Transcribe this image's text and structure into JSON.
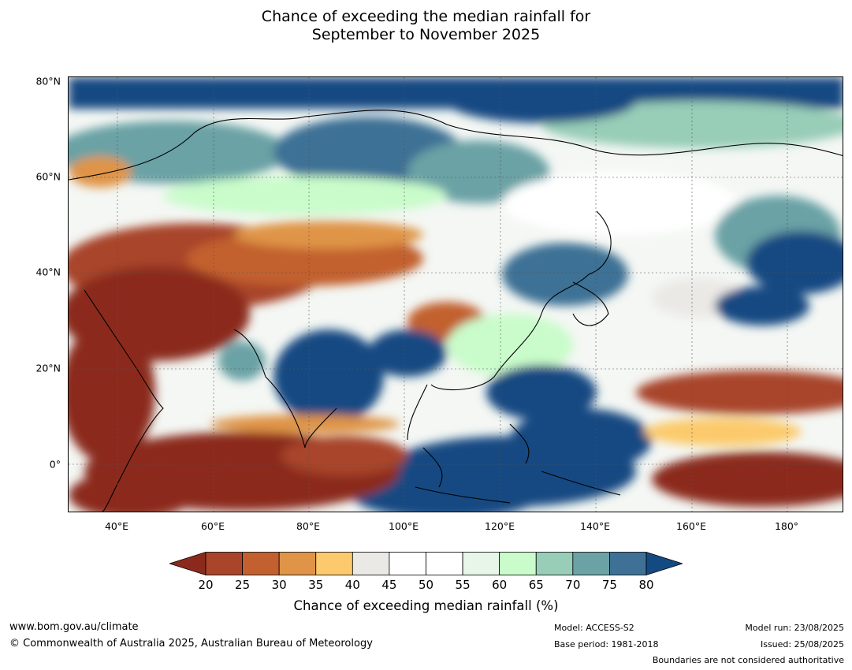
{
  "title": {
    "line1": "Chance of exceeding the median rainfall for",
    "line2": "September to November 2025"
  },
  "map": {
    "lat_labels": [
      "80°N",
      "60°N",
      "40°N",
      "20°N",
      "0°"
    ],
    "lon_labels": [
      "40°E",
      "60°E",
      "80°E",
      "100°E",
      "120°E",
      "140°E",
      "160°E",
      "180°"
    ]
  },
  "colorbar": {
    "ticks": [
      "20",
      "25",
      "30",
      "35",
      "40",
      "45",
      "50",
      "55",
      "60",
      "65",
      "70",
      "75",
      "80"
    ],
    "colors": [
      "#8b2a1c",
      "#a8452a",
      "#c2602f",
      "#df9447",
      "#fcca6c",
      "#ebe9e5",
      "#ffffff",
      "#ffffff",
      "#e8f5e9",
      "#c9fcca",
      "#98cdb7",
      "#6aa2a5",
      "#3e7195",
      "#134a82"
    ],
    "label": "Chance of exceeding median rainfall (%)"
  },
  "footer": {
    "url": "www.bom.gov.au/climate",
    "copyright": "© Commonwealth of Australia 2025, Australian Bureau of Meteorology",
    "model": "Model: ACCESS-S2",
    "base_period": "Base period: 1981-2018",
    "model_run": "Model run: 23/08/2025",
    "issued": "Issued: 25/08/2025",
    "disclaimer": "Boundaries are not considered authoritative"
  }
}
